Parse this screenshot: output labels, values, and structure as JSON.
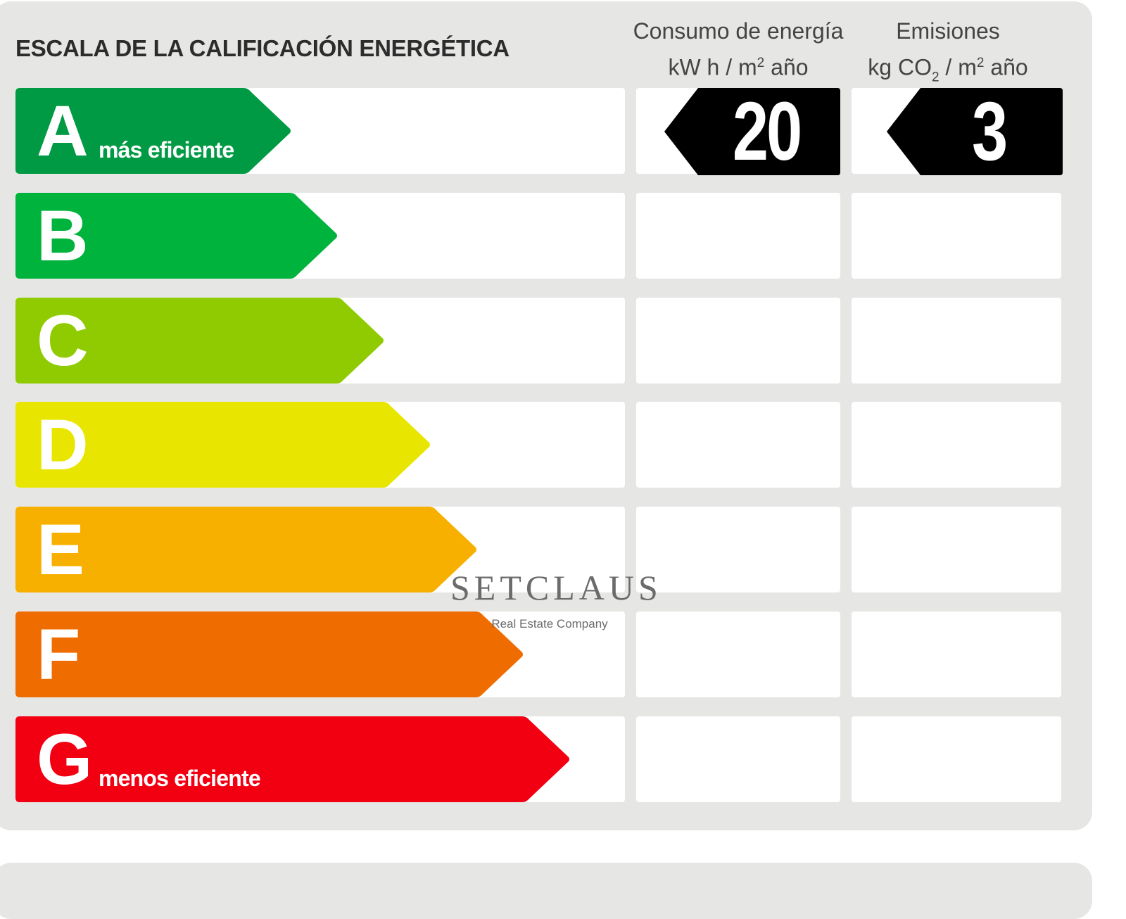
{
  "header": {
    "title": "ESCALA DE LA CALIFICACIÓN ENERGÉTICA",
    "col_consumo_l1": "Consumo de energía",
    "col_consumo_l2a": "kW h  / m",
    "col_consumo_sup": "2",
    "col_consumo_l2b": " año",
    "col_emisiones_l1": "Emisiones",
    "col_emisiones_l2a": "kg CO",
    "col_emisiones_sub": "2",
    "col_emisiones_l2b": "  / m",
    "col_emisiones_sup": "2",
    "col_emisiones_l2c": " año"
  },
  "ratings": [
    {
      "letter": "A",
      "label": "más eficiente",
      "color": "#009a44"
    },
    {
      "letter": "B",
      "label": "",
      "color": "#00b33c"
    },
    {
      "letter": "C",
      "label": "",
      "color": "#8fcb00"
    },
    {
      "letter": "D",
      "label": "",
      "color": "#e8e600"
    },
    {
      "letter": "E",
      "label": "",
      "color": "#f7b000"
    },
    {
      "letter": "F",
      "label": "",
      "color": "#ef6c00"
    },
    {
      "letter": "G",
      "label": "menos eficiente",
      "color": "#f20012"
    }
  ],
  "result": {
    "rating": "A",
    "consumo": "20",
    "emisiones": "3",
    "box_color": "#000000"
  },
  "watermark": {
    "brand": "SETCLAUS",
    "tagline": "Real Estate Company"
  }
}
